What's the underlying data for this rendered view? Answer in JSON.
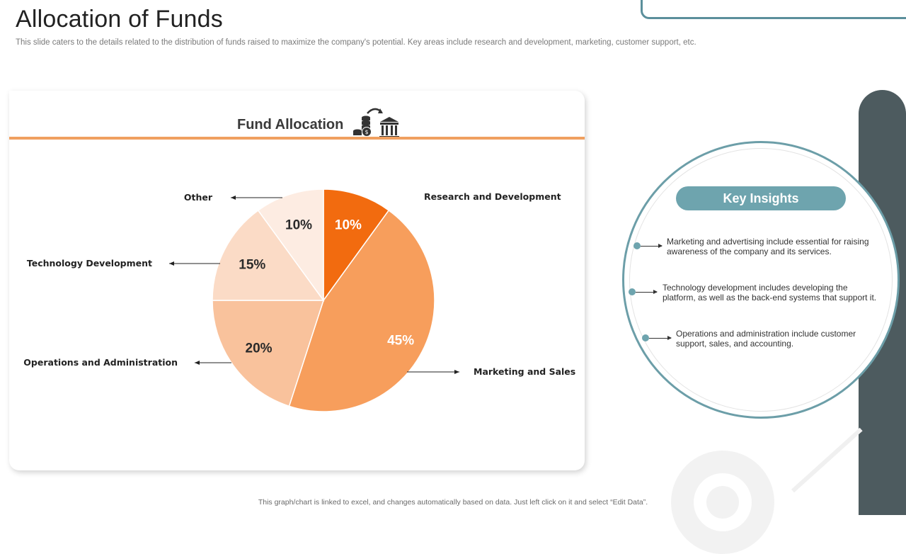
{
  "slide": {
    "title": "Allocation of Funds",
    "subtitle": "This slide caters to the details related to the distribution of funds raised to maximize the company's potential. Key areas include research and development, marketing, customer support, etc.",
    "footer": "This graph/chart is linked to excel, and changes automatically based on data. Just left click on it and select “Edit Data”."
  },
  "card": {
    "title": "Fund Allocation",
    "icon": "coins-to-bank-icon"
  },
  "chart_data": {
    "type": "pie",
    "title": "Fund Allocation",
    "categories": [
      "Research and Development",
      "Marketing and Sales",
      "Operations and Administration",
      "Technology Development",
      "Other"
    ],
    "values": [
      10,
      45,
      20,
      15,
      10
    ],
    "value_labels": [
      "10%",
      "45%",
      "20%",
      "15%",
      "10%"
    ],
    "colors": [
      "#f26b0f",
      "#f79e5c",
      "#f9c29c",
      "#fbdbc6",
      "#fdece2"
    ],
    "label_colors": [
      "#ffffff",
      "#ffffff",
      "#2a2a2a",
      "#2a2a2a",
      "#2a2a2a"
    ],
    "start_angle_deg": 0,
    "direction": "clockwise"
  },
  "insights": {
    "heading": "Key Insights",
    "items": [
      {
        "text_line1": "Marketing and advertising include essential for raising",
        "text_line2": "awareness of the company and its services."
      },
      {
        "text_line1": "Technology development includes developing the",
        "text_line2": "platform, as well as the back-end systems that support it."
      },
      {
        "text_line1": "Operations and administration include customer",
        "text_line2": "support, sales, and accounting."
      }
    ]
  },
  "colors": {
    "accent_orange": "#f0a060",
    "teal": "#6ea4ae",
    "dark_bar": "#4d5b5f"
  }
}
